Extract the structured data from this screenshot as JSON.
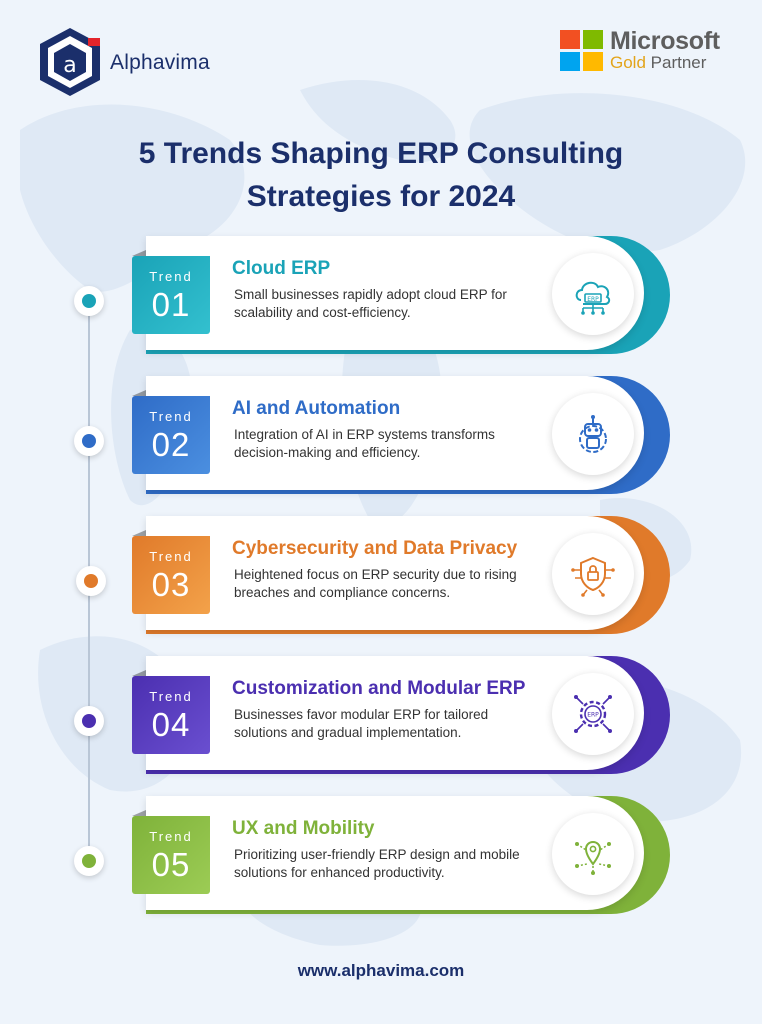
{
  "brand": {
    "logo_letter": "a",
    "name": "Alphavima",
    "partner_line1": "Microsoft",
    "partner_gold": "Gold",
    "partner_rest": "Partner",
    "ms_colors": [
      "#f25022",
      "#7fba00",
      "#00a4ef",
      "#ffb900"
    ]
  },
  "title": {
    "line1": "5 Trends Shaping ERP Consulting",
    "line2": "Strategies for 2024"
  },
  "trends": [
    {
      "label": "Trend",
      "number": "01",
      "title": "Cloud ERP",
      "description": "Small businesses rapidly adopt cloud ERP for scalability and cost-efficiency.",
      "icon": "cloud-erp-icon",
      "color": "#1aa3b7",
      "color_light": "#33c0cf"
    },
    {
      "label": "Trend",
      "number": "02",
      "title": "AI and Automation",
      "description": "Integration of AI in ERP systems transforms decision-making and efficiency.",
      "icon": "robot-gear-icon",
      "color": "#2f6cc7",
      "color_light": "#4b8fe0"
    },
    {
      "label": "Trend",
      "number": "03",
      "title": "Cybersecurity and Data Privacy",
      "description": "Heightened focus on ERP security due to rising breaches and compliance concerns.",
      "icon": "shield-lock-icon",
      "color": "#e07a2a",
      "color_light": "#f3a24a"
    },
    {
      "label": "Trend",
      "number": "04",
      "title": "Customization and Modular ERP",
      "description": "Businesses favor modular ERP for tailored solutions and gradual implementation.",
      "icon": "erp-gear-icon",
      "color": "#4b2fb0",
      "color_light": "#6a4fd0"
    },
    {
      "label": "Trend",
      "number": "05",
      "title": "UX and Mobility",
      "description": "Prioritizing user-friendly ERP design and mobile solutions for enhanced productivity.",
      "icon": "location-network-icon",
      "color": "#7fb23a",
      "color_light": "#9ccc55"
    }
  ],
  "footer": {
    "url": "www.alphavima.com"
  }
}
